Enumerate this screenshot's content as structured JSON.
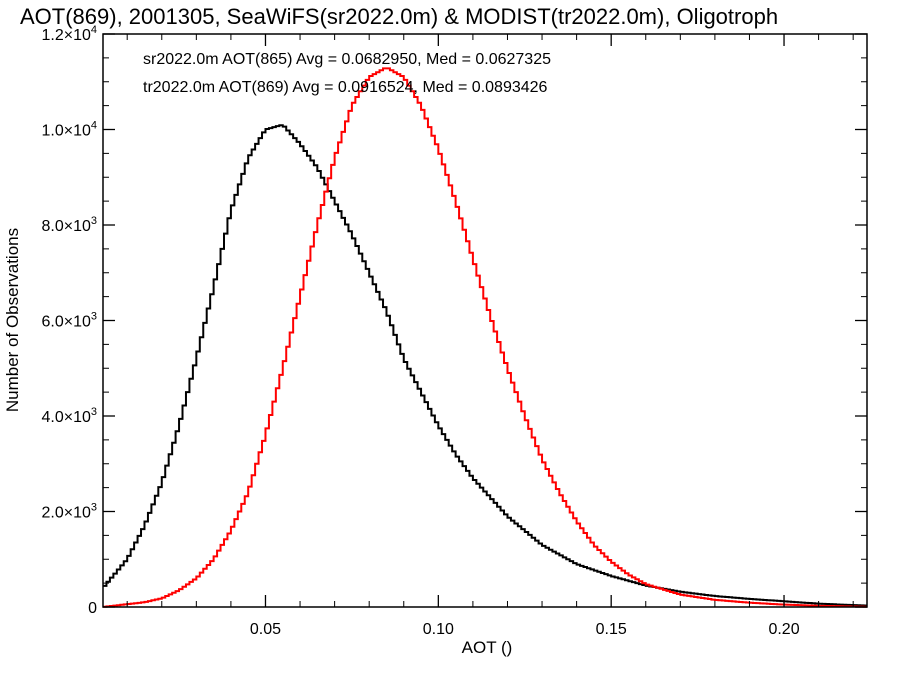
{
  "chart_data": {
    "type": "line",
    "title": "AOT(869), 2001305, SeaWiFS(sr2022.0m) & MODIST(tr2022.0m), Oligotroph",
    "xlabel": "AOT ()",
    "ylabel": "Number of Observations",
    "xlim": [
      0.003,
      0.224
    ],
    "ylim": [
      0,
      12000
    ],
    "x_ticks": [
      {
        "value": 0.05,
        "label": "0.05"
      },
      {
        "value": 0.1,
        "label": "0.10"
      },
      {
        "value": 0.15,
        "label": "0.15"
      },
      {
        "value": 0.2,
        "label": "0.20"
      }
    ],
    "y_ticks": [
      {
        "value": 0,
        "mantissa": "0",
        "exp": ""
      },
      {
        "value": 2000,
        "mantissa": "2.0×10",
        "exp": "3"
      },
      {
        "value": 4000,
        "mantissa": "4.0×10",
        "exp": "3"
      },
      {
        "value": 6000,
        "mantissa": "6.0×10",
        "exp": "3"
      },
      {
        "value": 8000,
        "mantissa": "8.0×10",
        "exp": "3"
      },
      {
        "value": 10000,
        "mantissa": "1.0×10",
        "exp": "4"
      },
      {
        "value": 12000,
        "mantissa": "1.2×10",
        "exp": "4"
      }
    ],
    "grid": false,
    "series": [
      {
        "name": "sr2022.0m AOT(865) Avg = 0.0682950, Med = 0.0627325",
        "color": "#000000",
        "x": [
          0.003,
          0.01,
          0.015,
          0.02,
          0.025,
          0.03,
          0.035,
          0.04,
          0.045,
          0.05,
          0.055,
          0.06,
          0.065,
          0.07,
          0.075,
          0.08,
          0.085,
          0.09,
          0.095,
          0.1,
          0.105,
          0.11,
          0.115,
          0.12,
          0.125,
          0.13,
          0.14,
          0.15,
          0.16,
          0.17,
          0.18,
          0.19,
          0.2,
          0.21,
          0.22,
          0.224
        ],
        "y": [
          400,
          1000,
          1700,
          2600,
          3800,
          5200,
          6700,
          8300,
          9400,
          10000,
          10100,
          9700,
          9200,
          8500,
          7800,
          7000,
          6200,
          5200,
          4500,
          3800,
          3200,
          2700,
          2300,
          1900,
          1600,
          1300,
          900,
          650,
          450,
          320,
          230,
          170,
          120,
          70,
          40,
          30
        ]
      },
      {
        "name": "tr2022.0m AOT(869) Avg = 0.0916524, Med = 0.0893426",
        "color": "#ff0000",
        "x": [
          0.003,
          0.015,
          0.02,
          0.025,
          0.03,
          0.035,
          0.04,
          0.045,
          0.05,
          0.055,
          0.06,
          0.065,
          0.07,
          0.075,
          0.08,
          0.085,
          0.09,
          0.095,
          0.1,
          0.105,
          0.11,
          0.115,
          0.12,
          0.125,
          0.13,
          0.135,
          0.14,
          0.145,
          0.15,
          0.155,
          0.16,
          0.17,
          0.18,
          0.19,
          0.2,
          0.21,
          0.224
        ],
        "y": [
          0,
          100,
          180,
          350,
          600,
          1000,
          1600,
          2400,
          3600,
          5000,
          6500,
          8000,
          9400,
          10500,
          11100,
          11300,
          11100,
          10500,
          9600,
          8500,
          7300,
          6100,
          5000,
          4000,
          3100,
          2400,
          1800,
          1300,
          950,
          680,
          480,
          260,
          150,
          90,
          50,
          25,
          5
        ]
      }
    ]
  }
}
